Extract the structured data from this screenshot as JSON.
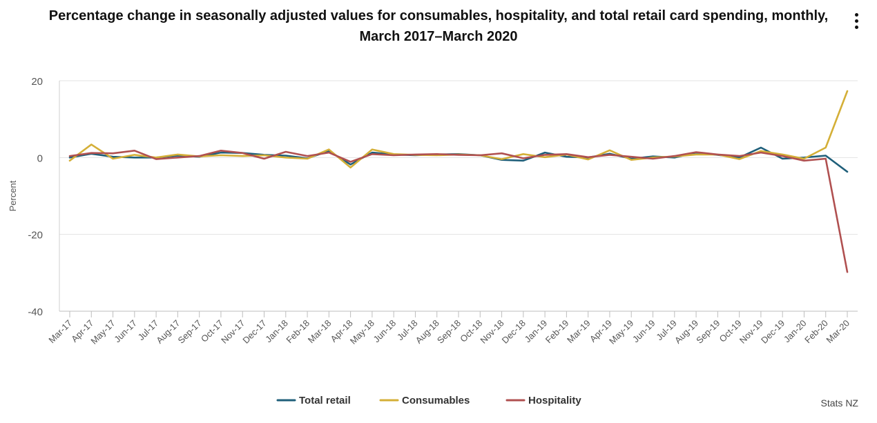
{
  "menu": {
    "icon": "more-vertical-icon"
  },
  "credit": "Stats NZ",
  "chart_data": {
    "type": "line",
    "title": "Percentage change in seasonally adjusted values for consumables, hospitality, and total retail card spending, monthly, March 2017–March 2020",
    "xlabel": "",
    "ylabel": "Percent",
    "ylim": [
      -40,
      20
    ],
    "yticks": [
      20,
      0,
      -20,
      -40
    ],
    "grid": true,
    "legend_position": "bottom",
    "categories": [
      "Mar-17",
      "Apr-17",
      "May-17",
      "Jun-17",
      "Jul-17",
      "Aug-17",
      "Sep-17",
      "Oct-17",
      "Nov-17",
      "Dec-17",
      "Jan-18",
      "Feb-18",
      "Mar-18",
      "Apr-18",
      "May-18",
      "Jun-18",
      "Jul-18",
      "Aug-18",
      "Sep-18",
      "Oct-18",
      "Nov-18",
      "Dec-18",
      "Jan-19",
      "Feb-19",
      "Mar-19",
      "Apr-19",
      "May-19",
      "Jun-19",
      "Jul-19",
      "Aug-19",
      "Sep-19",
      "Oct-19",
      "Nov-19",
      "Dec-19",
      "Jan-20",
      "Feb-20",
      "Mar-20"
    ],
    "series": [
      {
        "name": "Total retail",
        "color": "#1f5f7a",
        "values": [
          0.0,
          1.0,
          0.2,
          0.0,
          0.0,
          0.5,
          0.2,
          1.3,
          1.2,
          0.7,
          0.5,
          -0.2,
          1.7,
          -1.8,
          1.3,
          0.8,
          0.6,
          0.8,
          0.9,
          0.6,
          -0.6,
          -0.8,
          1.3,
          0.2,
          0.0,
          1.0,
          -0.3,
          0.3,
          0.0,
          1.3,
          0.7,
          0.0,
          2.6,
          -0.3,
          0.0,
          0.5,
          -3.7
        ]
      },
      {
        "name": "Consumables",
        "color": "#d4af37",
        "values": [
          -0.8,
          3.4,
          -0.3,
          0.7,
          0.0,
          0.8,
          0.3,
          0.6,
          0.4,
          0.6,
          0.0,
          -0.3,
          2.1,
          -2.6,
          2.1,
          0.9,
          0.7,
          0.6,
          0.8,
          0.6,
          -0.4,
          0.9,
          0.1,
          0.8,
          -0.5,
          1.9,
          -0.6,
          0.0,
          0.3,
          0.8,
          0.8,
          -0.4,
          1.7,
          0.8,
          -0.3,
          2.6,
          17.3
        ]
      },
      {
        "name": "Hospitality",
        "color": "#b05050",
        "values": [
          0.4,
          1.2,
          1.1,
          1.8,
          -0.4,
          0.0,
          0.4,
          1.8,
          1.2,
          -0.3,
          1.5,
          0.4,
          1.3,
          -1.1,
          0.9,
          0.6,
          0.8,
          0.9,
          0.7,
          0.6,
          1.1,
          -0.2,
          0.7,
          0.9,
          0.1,
          0.7,
          0.2,
          -0.3,
          0.4,
          1.4,
          0.8,
          0.4,
          1.3,
          0.4,
          -0.8,
          -0.3,
          -29.8
        ]
      }
    ]
  }
}
